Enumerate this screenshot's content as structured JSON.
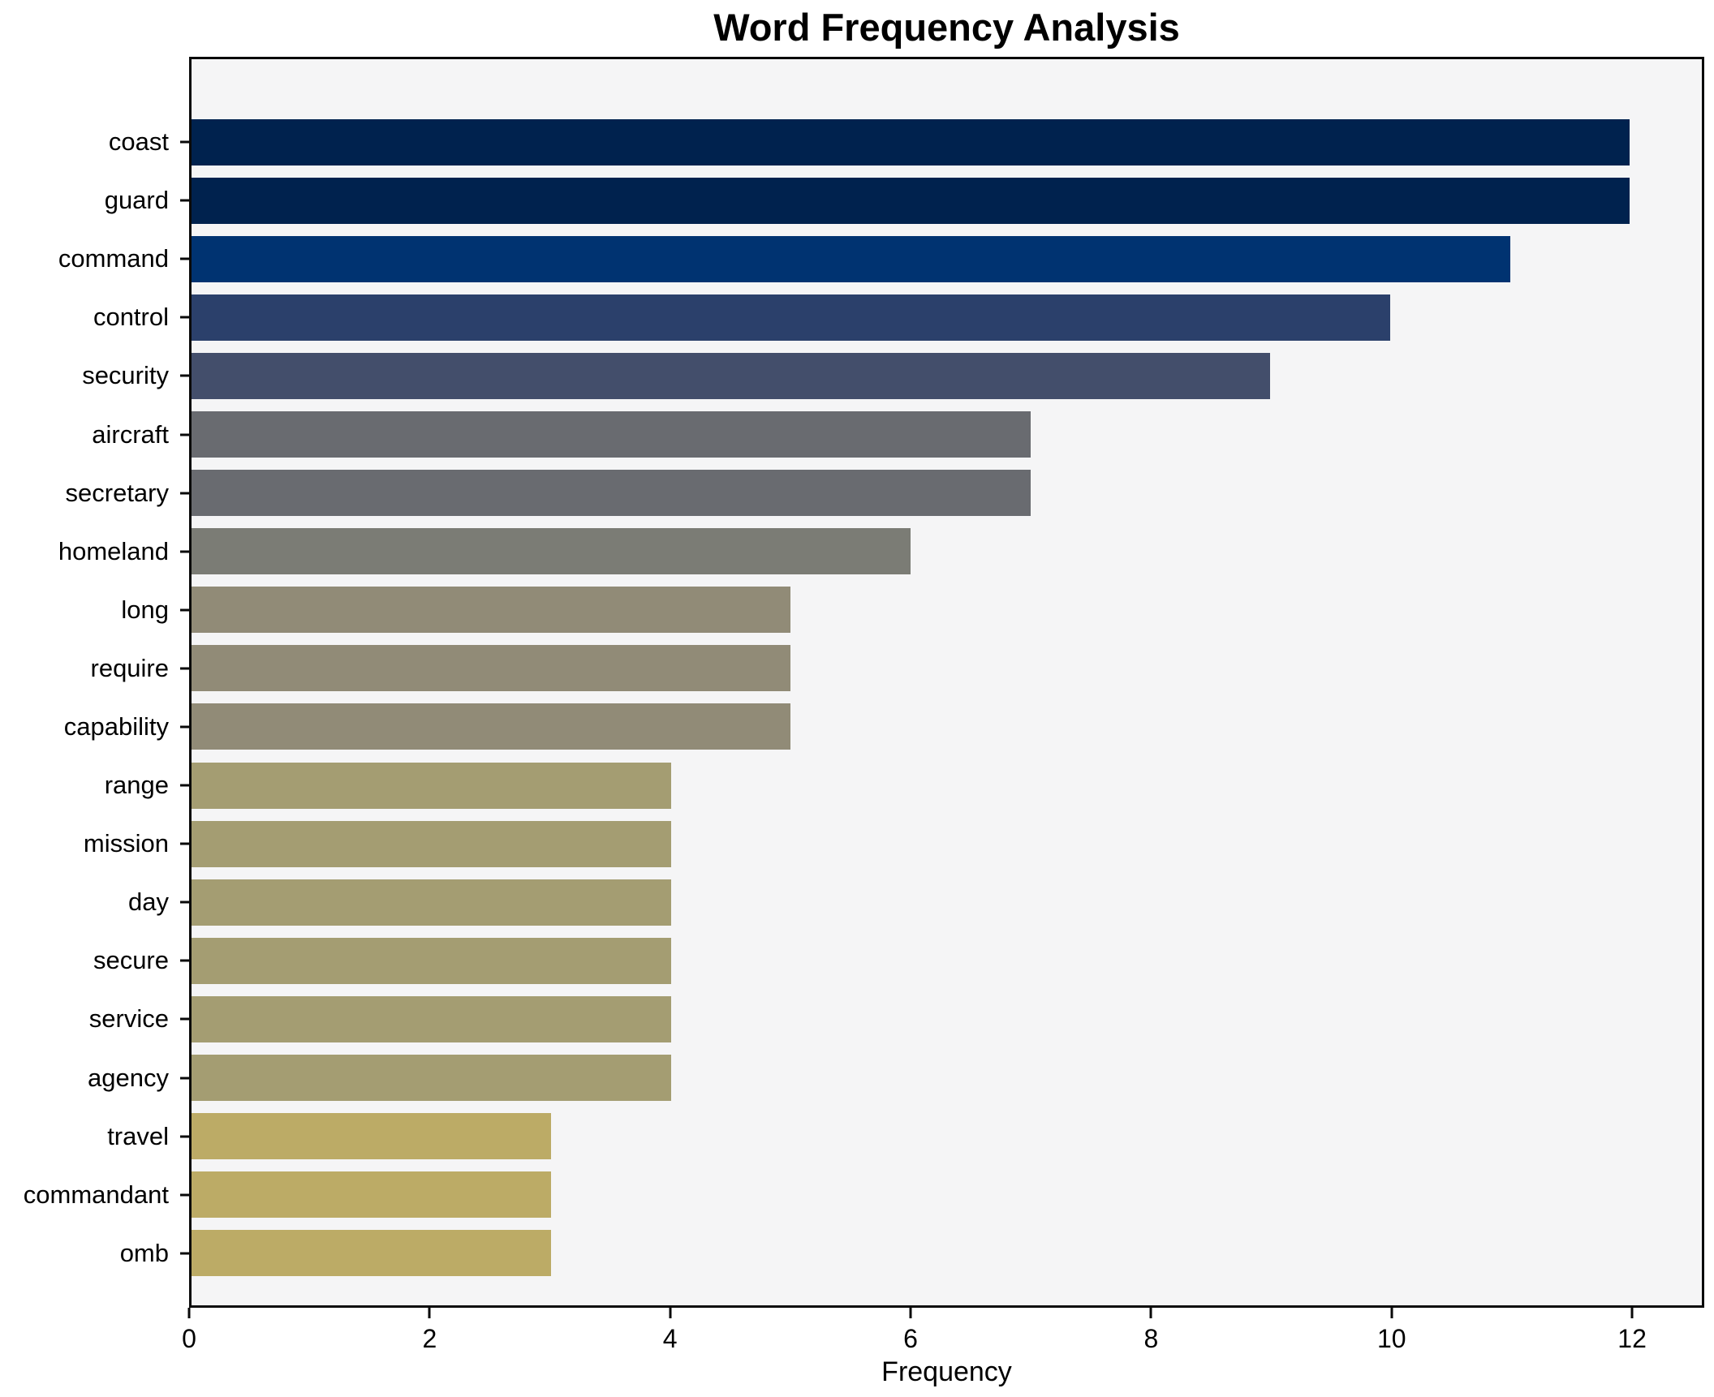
{
  "chart_data": {
    "type": "bar",
    "orientation": "horizontal",
    "title": "Word Frequency Analysis",
    "xlabel": "Frequency",
    "ylabel": "",
    "categories": [
      "coast",
      "guard",
      "command",
      "control",
      "security",
      "aircraft",
      "secretary",
      "homeland",
      "long",
      "require",
      "capability",
      "range",
      "mission",
      "day",
      "secure",
      "service",
      "agency",
      "travel",
      "commandant",
      "omb"
    ],
    "values": [
      12,
      12,
      11,
      10,
      9,
      7,
      7,
      6,
      5,
      5,
      5,
      4,
      4,
      4,
      4,
      4,
      4,
      3,
      3,
      3
    ],
    "bar_colors": [
      "#00224e",
      "#00224e",
      "#003371",
      "#2b406b",
      "#434e6b",
      "#696b70",
      "#696b70",
      "#7b7c75",
      "#918b77",
      "#918b77",
      "#918b77",
      "#a49d72",
      "#a49d72",
      "#a49d72",
      "#a49d72",
      "#a49d72",
      "#a49d72",
      "#bcab66",
      "#bcab66",
      "#bcab66"
    ],
    "xlim": [
      0,
      12.6
    ],
    "xticks": [
      0,
      2,
      4,
      6,
      8,
      10,
      12
    ],
    "grid": false,
    "legend": "none",
    "plot_background": "#f5f5f6",
    "figure_background": "#ffffff",
    "spine_color": "#0a0a0a",
    "text_color": "#000000",
    "colormap": "cividis"
  }
}
